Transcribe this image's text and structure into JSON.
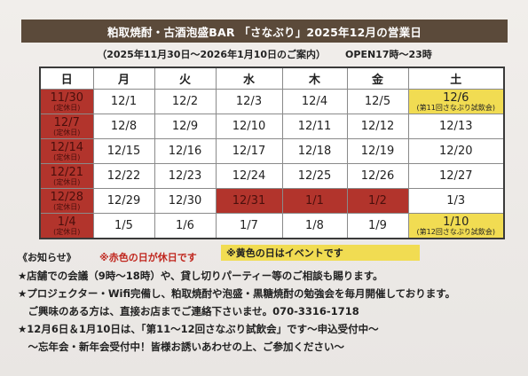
{
  "title": "粕取焼酎・古酒泡盛BAR 「さなぶり」2025年12月の営業日",
  "period": "（2025年11月30日～2026年1月10日のご案内）",
  "hours": "OPEN17時～23時",
  "weekdays": [
    "日",
    "月",
    "火",
    "水",
    "木",
    "金",
    "土"
  ],
  "weeks": [
    [
      {
        "date": "11/30",
        "note": "(定休日)",
        "style": "red"
      },
      {
        "date": "12/1"
      },
      {
        "date": "12/2"
      },
      {
        "date": "12/3"
      },
      {
        "date": "12/4"
      },
      {
        "date": "12/5"
      },
      {
        "date": "12/6",
        "note": "(第11回さなぶり試飲会)",
        "style": "yellow"
      }
    ],
    [
      {
        "date": "12/7",
        "note": "(定休日)",
        "style": "red"
      },
      {
        "date": "12/8"
      },
      {
        "date": "12/9"
      },
      {
        "date": "12/10"
      },
      {
        "date": "12/11"
      },
      {
        "date": "12/12"
      },
      {
        "date": "12/13"
      }
    ],
    [
      {
        "date": "12/14",
        "note": "(定休日)",
        "style": "red"
      },
      {
        "date": "12/15"
      },
      {
        "date": "12/16"
      },
      {
        "date": "12/17"
      },
      {
        "date": "12/18"
      },
      {
        "date": "12/19"
      },
      {
        "date": "12/20"
      }
    ],
    [
      {
        "date": "12/21",
        "note": "(定休日)",
        "style": "red"
      },
      {
        "date": "12/22"
      },
      {
        "date": "12/23"
      },
      {
        "date": "12/24"
      },
      {
        "date": "12/25"
      },
      {
        "date": "12/26"
      },
      {
        "date": "12/27"
      }
    ],
    [
      {
        "date": "12/28",
        "note": "(定休日)",
        "style": "red"
      },
      {
        "date": "12/29"
      },
      {
        "date": "12/30"
      },
      {
        "date": "12/31",
        "style": "red"
      },
      {
        "date": "1/1",
        "style": "red"
      },
      {
        "date": "1/2",
        "style": "red"
      },
      {
        "date": "1/3"
      }
    ],
    [
      {
        "date": "1/4",
        "note": "(定休日)",
        "style": "red"
      },
      {
        "date": "1/5"
      },
      {
        "date": "1/6"
      },
      {
        "date": "1/7"
      },
      {
        "date": "1/8"
      },
      {
        "date": "1/9"
      },
      {
        "date": "1/10",
        "note": "(第12回さなぶり試飲会)",
        "style": "yellow"
      }
    ]
  ],
  "legend": {
    "red": "※赤色の日が休日です",
    "yellow": "※黄色の日はイベントです"
  },
  "notice_heading": "《お知らせ》",
  "notices": [
    "★店舗での会議（9時～18時）や、貸し切りパーティー等のご相談も賜ります。",
    "★プロジェクター・Wifi完備し、粕取焼酎や泡盛・黒糖焼酎の勉強会を毎月開催しております。",
    "　ご興味のある方は、直接お店までご連絡下さいませ。070-3316-1718",
    "★12月6日＆1月10日は、「第11～12回さなぶり試飲会」です～申込受付中～",
    "　～忘年会・新年会受付中！皆様お誘いあわせの上、ご参加ください～"
  ],
  "colors": {
    "title_band": "#5b4a3a",
    "holiday": "#b2342c",
    "event": "#f1dc52",
    "legend_red_text": "#c0261e"
  }
}
